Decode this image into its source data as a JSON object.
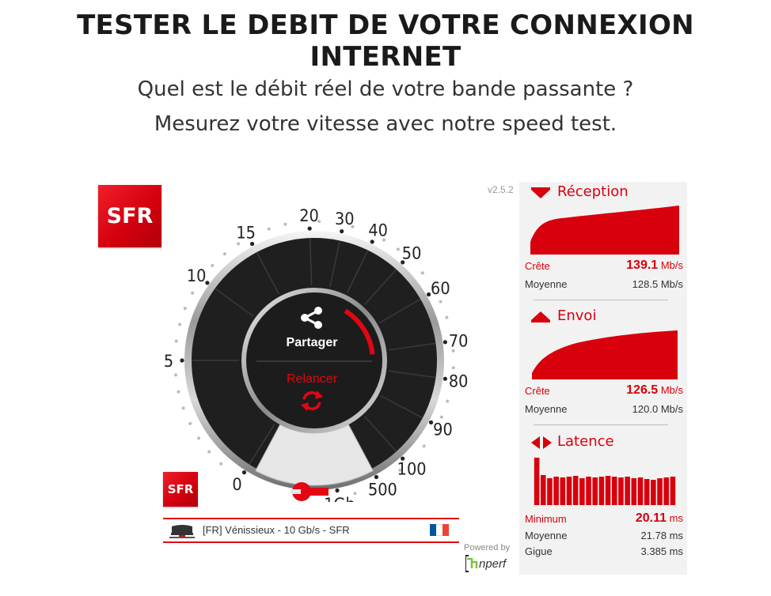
{
  "page": {
    "title": "TESTER LE DEBIT DE VOTRE CONNEXION INTERNET",
    "subtitle_line1": "Quel est le débit réel de votre bande passante ?",
    "subtitle_line2": "Mesurez votre vitesse avec notre speed test."
  },
  "brand": {
    "logo_text": "SFR",
    "color": "#e30613"
  },
  "speedtest": {
    "version": "v2.5.2",
    "gauge_labels": [
      "0",
      "5",
      "10",
      "15",
      "20",
      "30",
      "40",
      "50",
      "60",
      "70",
      "80",
      "90",
      "100",
      "500",
      "1Gb"
    ],
    "share_label": "Partager",
    "restart_label": "Relancer",
    "icons": {
      "share": "share-icon",
      "restart": "refresh-icon",
      "settings": "wrench-icon",
      "server": "server-icon"
    },
    "server": "[FR] Vénissieux - 10 Gb/s - SFR",
    "flag_colors": [
      "#0055a4",
      "#ffffff",
      "#ef4135"
    ],
    "powered_by": "Powered by",
    "provider_logo": "nperf"
  },
  "results": {
    "reception": {
      "title": "Réception",
      "peak_label": "Crête",
      "peak_value": "139.1",
      "peak_unit": "Mb/s",
      "avg_label": "Moyenne",
      "avg_value": "128.5 Mb/s"
    },
    "upload": {
      "title": "Envoi",
      "peak_label": "Crête",
      "peak_value": "126.5",
      "peak_unit": "Mb/s",
      "avg_label": "Moyenne",
      "avg_value": "120.0 Mb/s"
    },
    "latency": {
      "title": "Latence",
      "min_label": "Minimum",
      "min_value": "20.11",
      "min_unit": "ms",
      "avg_label": "Moyenne",
      "avg_value": "21.78 ms",
      "jitter_label": "Gigue",
      "jitter_value": "3.385 ms"
    }
  }
}
